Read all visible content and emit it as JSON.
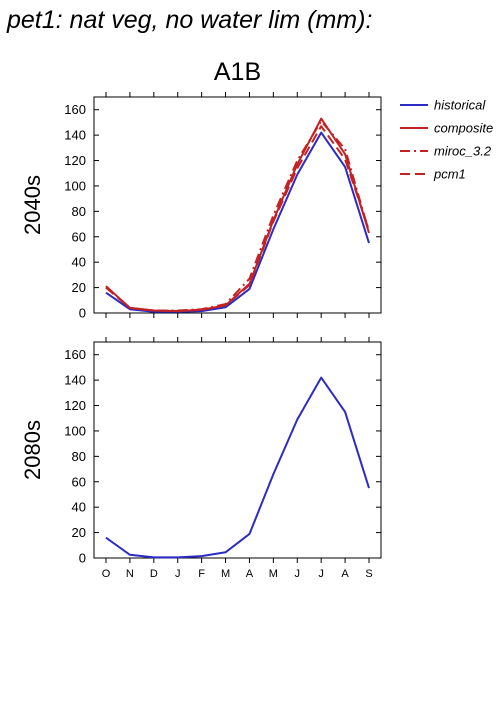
{
  "title": "pet1: nat veg, no water lim (mm):",
  "scenario": "A1B",
  "colors": {
    "historical": "#2b2bc6",
    "composite": "#c42222",
    "miroc_3.2": "#c42222",
    "pcm1": "#c42222"
  },
  "legend": [
    {
      "label": "historical",
      "style": "solid",
      "color": "#2b2bc6"
    },
    {
      "label": "composite",
      "style": "solid",
      "color": "#c42222"
    },
    {
      "label": "miroc_3.2",
      "style": "dash-dot",
      "color": "#c42222"
    },
    {
      "label": "pcm1",
      "style": "dashed",
      "color": "#c42222"
    }
  ],
  "chart_data": [
    {
      "type": "line",
      "panel_label": "2040s",
      "x": [
        "O",
        "N",
        "D",
        "J",
        "F",
        "M",
        "A",
        "M",
        "J",
        "J",
        "A",
        "S"
      ],
      "show_x_tick_labels": false,
      "ylim": [
        0,
        170
      ],
      "yticks": [
        0,
        20,
        40,
        60,
        80,
        100,
        120,
        140,
        160
      ],
      "series": [
        {
          "name": "historical",
          "style": "solid",
          "color": "#2b2bc6",
          "values": [
            16,
            3,
            1,
            1,
            1.5,
            4.5,
            19,
            66,
            109,
            142,
            115,
            55
          ]
        },
        {
          "name": "composite",
          "style": "solid",
          "color": "#c42222",
          "values": [
            21,
            4,
            2,
            1.5,
            2.5,
            6,
            23,
            73,
            117,
            153,
            125,
            63
          ]
        },
        {
          "name": "miroc_3.2",
          "style": "dash-dot",
          "color": "#c42222",
          "values": [
            21,
            4,
            2,
            2,
            3,
            7,
            27,
            77,
            120,
            151,
            129,
            64
          ]
        },
        {
          "name": "pcm1",
          "style": "dashed",
          "color": "#c42222",
          "values": [
            20,
            4,
            2,
            1.5,
            2.5,
            6,
            22,
            72,
            114,
            147,
            121,
            65
          ]
        }
      ]
    },
    {
      "type": "line",
      "panel_label": "2080s",
      "x": [
        "O",
        "N",
        "D",
        "J",
        "F",
        "M",
        "A",
        "M",
        "J",
        "J",
        "A",
        "S"
      ],
      "show_x_tick_labels": true,
      "ylim": [
        0,
        170
      ],
      "yticks": [
        0,
        20,
        40,
        60,
        80,
        100,
        120,
        140,
        160
      ],
      "series": [
        {
          "name": "historical",
          "style": "solid",
          "color": "#2b2bc6",
          "values": [
            16,
            2.5,
            0.5,
            0.5,
            1.5,
            4.5,
            19,
            66,
            109,
            142,
            115,
            55
          ]
        }
      ]
    }
  ]
}
